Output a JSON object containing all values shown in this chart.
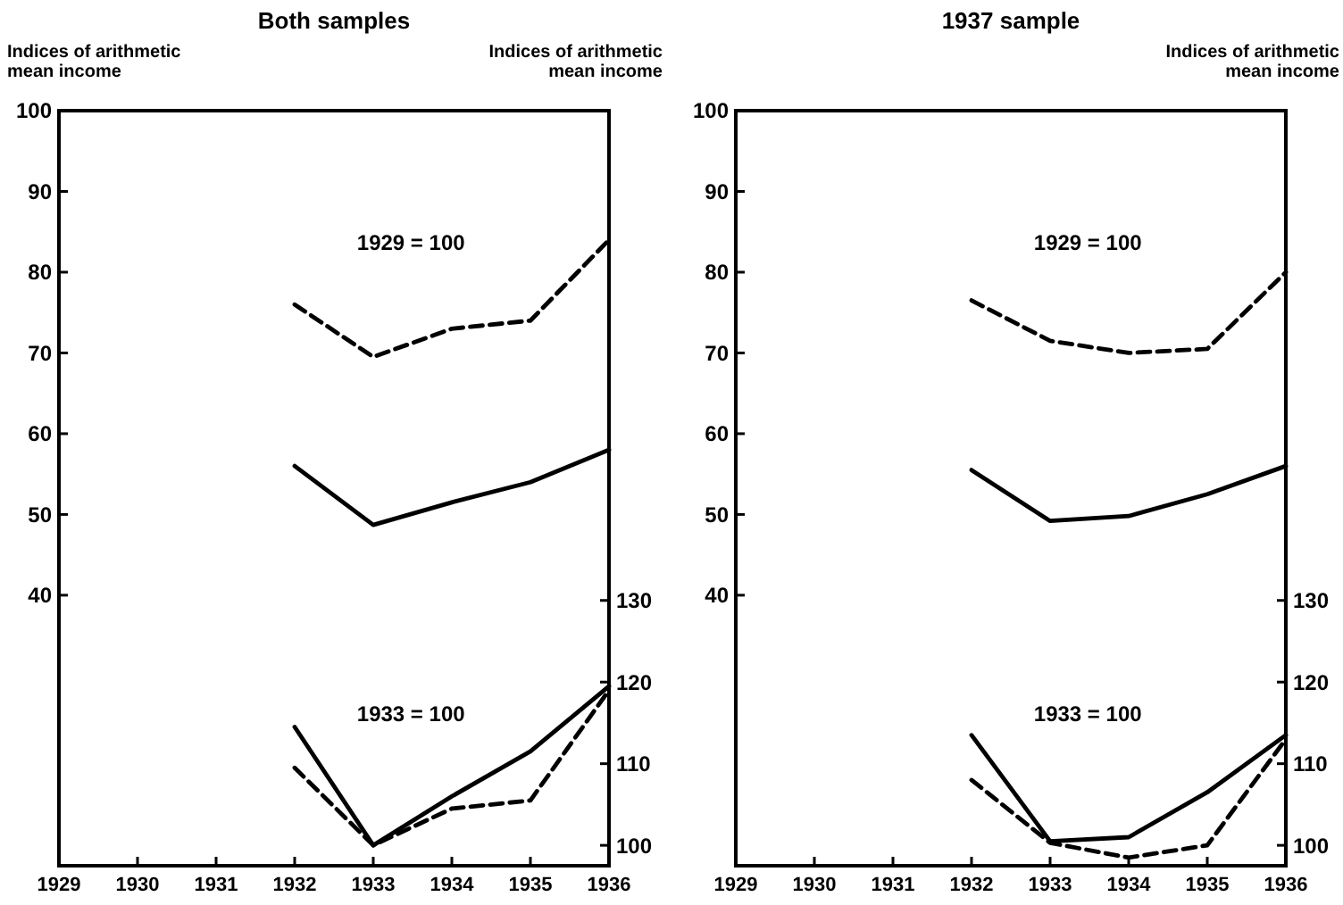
{
  "chart_data": [
    {
      "type": "line",
      "title": "Both samples",
      "ylabel": "Indices of arithmetic mean income",
      "y2label": "Indices of arithmetic mean income",
      "x": [
        1932,
        1933,
        1934,
        1935,
        1936
      ],
      "xlim": [
        1929,
        1936
      ],
      "xticks": [
        1929,
        1930,
        1931,
        1932,
        1933,
        1934,
        1935,
        1936
      ],
      "ylim": [
        6.5,
        100
      ],
      "yticks": [
        40,
        50,
        60,
        70,
        80,
        90,
        100
      ],
      "y2lim": [
        97.5,
        190
      ],
      "y2ticks": [
        100,
        110,
        120,
        130
      ],
      "grid": false,
      "marker": "none",
      "annotations": [
        "1929 = 100",
        "1933 = 100"
      ],
      "series": [
        {
          "color": "#000000",
          "line_style": "dashed",
          "values": [
            76,
            69.5,
            73,
            74,
            84
          ]
        },
        {
          "color": "#000000",
          "line_style": "solid",
          "values": [
            56,
            48.7,
            51.5,
            54,
            58
          ]
        },
        {
          "color": "#000000",
          "line_style": "solid",
          "axis": "y2",
          "values": [
            114.5,
            100,
            106,
            111.5,
            119.5
          ]
        },
        {
          "color": "#000000",
          "line_style": "dashed",
          "axis": "y2",
          "values": [
            109.5,
            100,
            104.5,
            105.5,
            119
          ]
        }
      ]
    },
    {
      "type": "line",
      "title": "1937 sample",
      "y2label": "Indices of arithmetic mean income",
      "x": [
        1932,
        1933,
        1934,
        1935,
        1936
      ],
      "xlim": [
        1929,
        1936
      ],
      "xticks": [
        1929,
        1930,
        1931,
        1932,
        1933,
        1934,
        1935,
        1936
      ],
      "ylim": [
        6.5,
        100
      ],
      "yticks": [
        40,
        50,
        60,
        70,
        80,
        90,
        100
      ],
      "y2lim": [
        97.5,
        190
      ],
      "y2ticks": [
        100,
        110,
        120,
        130
      ],
      "grid": false,
      "marker": "none",
      "annotations": [
        "1929 = 100",
        "1933 = 100"
      ],
      "series": [
        {
          "color": "#000000",
          "line_style": "dashed",
          "values": [
            76.5,
            71.5,
            70,
            70.5,
            80
          ]
        },
        {
          "color": "#000000",
          "line_style": "solid",
          "values": [
            55.5,
            49.2,
            49.8,
            52.5,
            56
          ]
        },
        {
          "color": "#000000",
          "line_style": "solid",
          "axis": "y2",
          "values": [
            113.5,
            100.5,
            101,
            106.5,
            113.5
          ]
        },
        {
          "color": "#000000",
          "line_style": "dashed",
          "axis": "y2",
          "values": [
            108,
            100.3,
            98.5,
            100,
            113
          ]
        }
      ]
    }
  ]
}
